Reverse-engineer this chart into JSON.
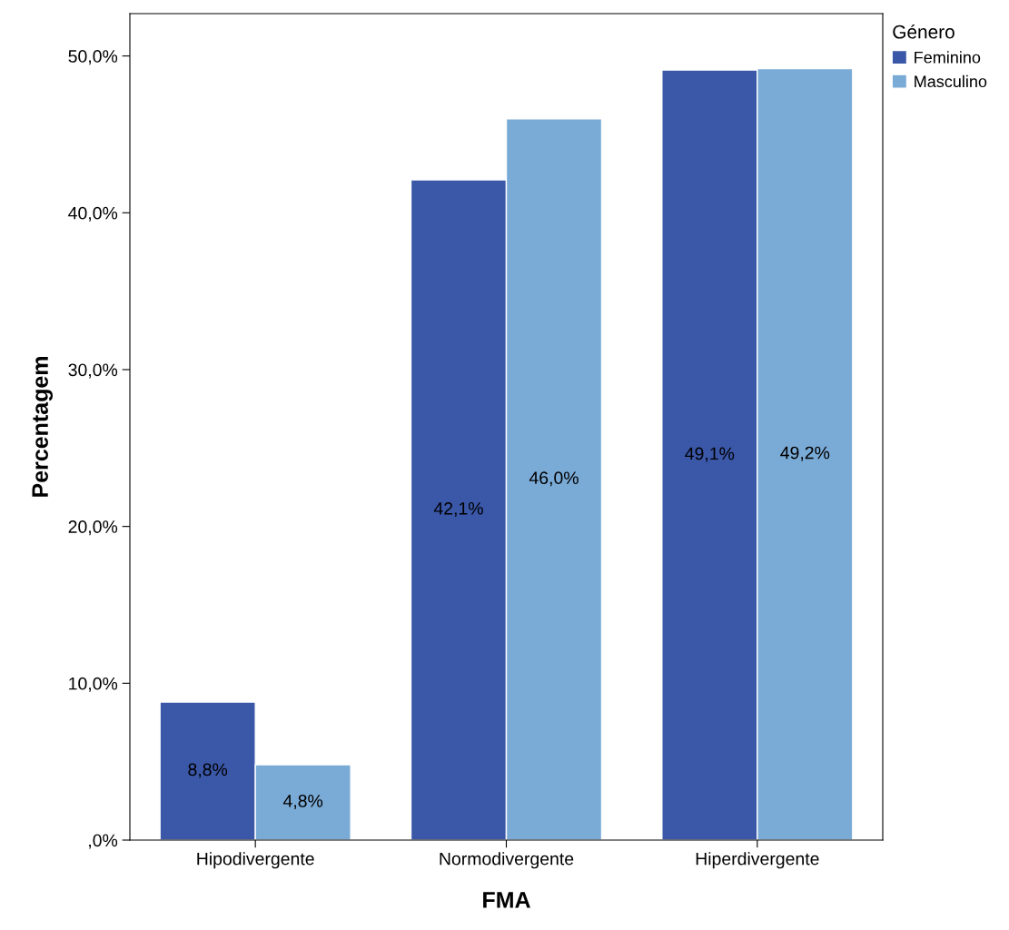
{
  "chart_data": {
    "type": "bar",
    "xlabel": "FMA",
    "ylabel": "Percentagem",
    "legend_title": "Género",
    "legend": "top right",
    "categories": [
      "Hipodivergente",
      "Normodivergente",
      "Hiperdivergente"
    ],
    "series": [
      {
        "name": "Feminino",
        "color": "#3a57a8",
        "values": [
          8.8,
          42.1,
          49.1
        ],
        "value_labels": [
          "8,8%",
          "42,1%",
          "49,1%"
        ]
      },
      {
        "name": "Masculino",
        "color": "#7aaad6",
        "values": [
          4.8,
          46.0,
          49.2
        ],
        "value_labels": [
          "4,8%",
          "46,0%",
          "49,2%"
        ]
      }
    ],
    "ylim": [
      0,
      52.7
    ],
    "yticks": [
      {
        "value": 0,
        "label": ",0%"
      },
      {
        "value": 10,
        "label": "10,0%"
      },
      {
        "value": 20,
        "label": "20,0%"
      },
      {
        "value": 30,
        "label": "30,0%"
      },
      {
        "value": 40,
        "label": "40,0%"
      },
      {
        "value": 50,
        "label": "50,0%"
      }
    ],
    "grid": false
  }
}
